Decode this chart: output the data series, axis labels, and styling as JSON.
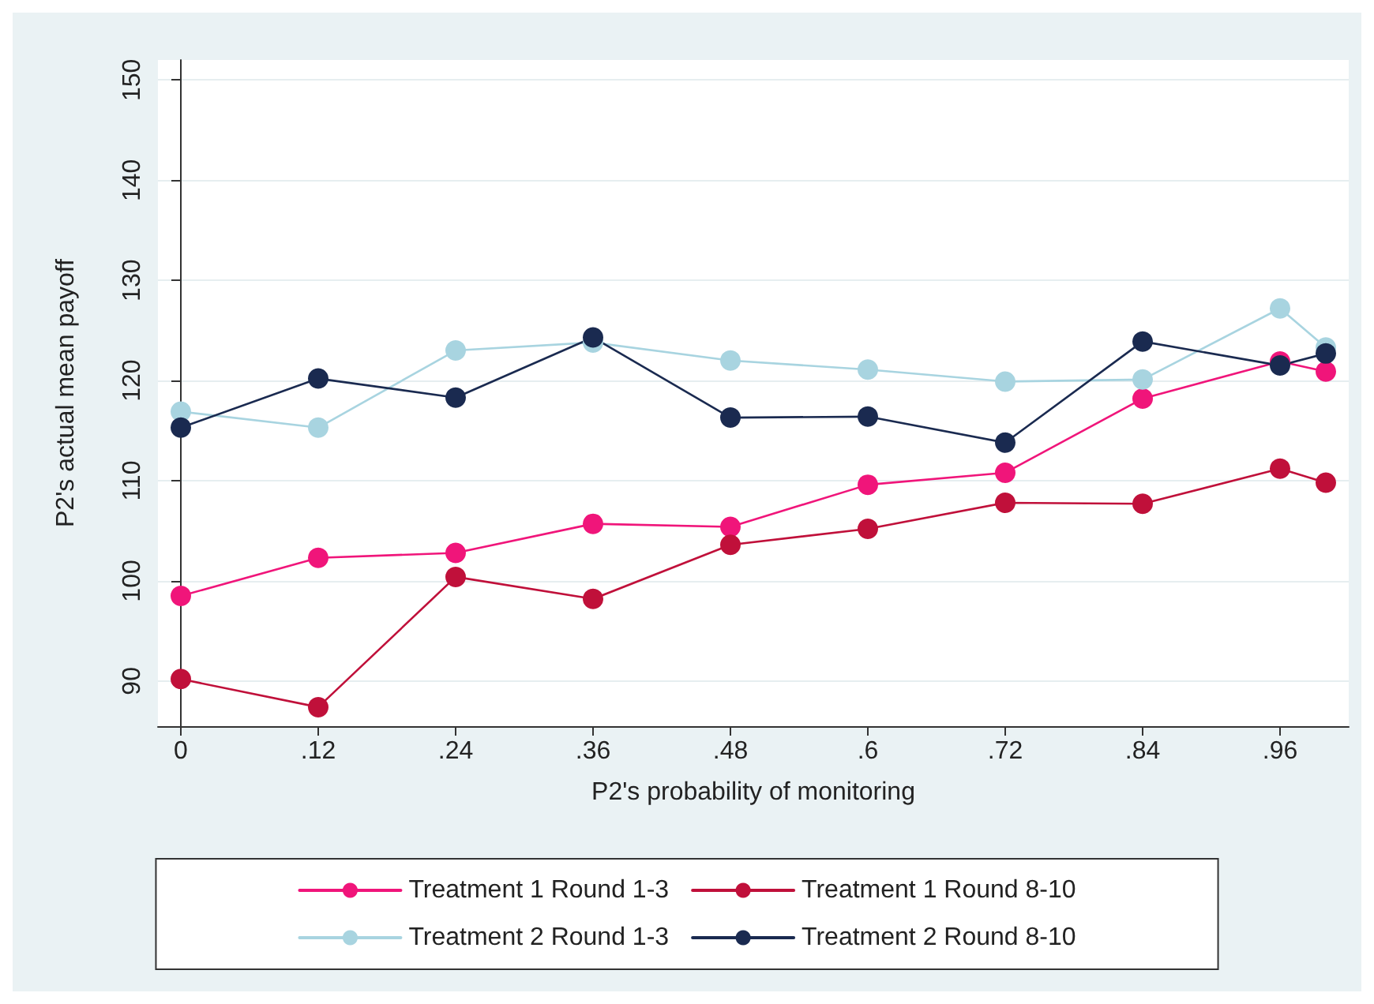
{
  "chart_data": {
    "type": "line",
    "xlabel": "P2's probability of monitoring",
    "ylabel": "P2's actual mean payoff",
    "xlim": [
      -0.02,
      1.02
    ],
    "ylim": [
      85.5,
      152
    ],
    "xticks": [
      0,
      {
        "value": 0.12,
        "label": ".12"
      },
      {
        "value": 0.24,
        "label": ".24"
      },
      {
        "value": 0.36,
        "label": ".36"
      },
      {
        "value": 0.48,
        "label": ".48"
      },
      {
        "value": 0.6,
        "label": ".6"
      },
      {
        "value": 0.72,
        "label": ".72"
      },
      {
        "value": 0.84,
        "label": ".84"
      },
      {
        "value": 0.96,
        "label": ".96"
      }
    ],
    "yticks": [
      90,
      100,
      110,
      120,
      130,
      140,
      150
    ],
    "x": [
      0,
      0.12,
      0.24,
      0.36,
      0.48,
      0.6,
      0.72,
      0.84,
      0.96,
      1
    ],
    "series": [
      {
        "name": "Treatment 1 Round 1-3",
        "color": "#f0157a",
        "values": [
          98.5,
          102.3,
          102.8,
          105.7,
          105.4,
          109.6,
          110.8,
          118.2,
          121.9,
          120.9
        ]
      },
      {
        "name": "Treatment 1 Round 8-10",
        "color": "#c0103a",
        "values": [
          90.2,
          87.4,
          100.4,
          98.2,
          103.6,
          105.2,
          107.8,
          107.7,
          111.2,
          109.8
        ]
      },
      {
        "name": "Treatment 2 Round 1-3",
        "color": "#a8d4e0",
        "values": [
          116.9,
          115.3,
          123.0,
          123.8,
          122.0,
          121.1,
          119.9,
          120.1,
          127.2,
          123.3
        ]
      },
      {
        "name": "Treatment 2 Round 8-10",
        "color": "#1a2a50",
        "values": [
          115.3,
          120.2,
          118.3,
          124.3,
          116.3,
          116.4,
          113.8,
          123.9,
          121.5,
          122.7
        ]
      }
    ],
    "grid": "y",
    "legend": "bottom",
    "marker": "circle",
    "line_style": "solid"
  }
}
